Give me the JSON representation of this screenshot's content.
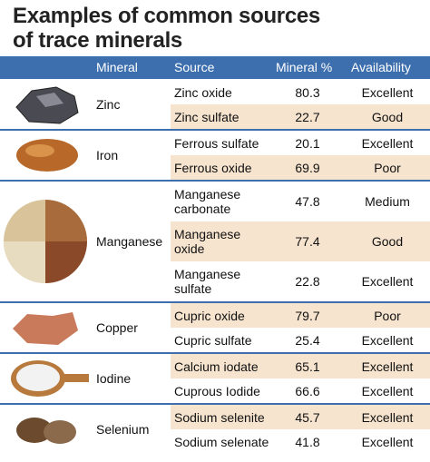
{
  "title_lines": [
    "Examples of common sources",
    "of trace minerals"
  ],
  "table": {
    "header": [
      "Mineral",
      "Source",
      "Mineral %",
      "Availability"
    ],
    "groups": [
      {
        "mineral": "Zinc",
        "rows": [
          {
            "source": "Zinc oxide",
            "percent": 80.3,
            "availability": "Excellent"
          },
          {
            "source": "Zinc sulfate",
            "percent": 22.7,
            "availability": "Good"
          }
        ]
      },
      {
        "mineral": "Iron",
        "rows": [
          {
            "source": "Ferrous sulfate",
            "percent": 20.1,
            "availability": "Excellent"
          },
          {
            "source": "Ferrous oxide",
            "percent": 69.9,
            "availability": "Poor"
          }
        ]
      },
      {
        "mineral": "Manganese",
        "rows": [
          {
            "source": "Manganese carbonate",
            "percent": 47.8,
            "availability": "Medium"
          },
          {
            "source": "Manganese oxide",
            "percent": 77.4,
            "availability": "Good"
          },
          {
            "source": "Manganese sulfate",
            "percent": 22.8,
            "availability": "Excellent"
          }
        ]
      },
      {
        "mineral": "Copper",
        "rows": [
          {
            "source": "Cupric oxide",
            "percent": 79.7,
            "availability": "Poor"
          },
          {
            "source": "Cupric sulfate",
            "percent": 25.4,
            "availability": "Excellent"
          }
        ]
      },
      {
        "mineral": "Iodine",
        "rows": [
          {
            "source": "Calcium iodate",
            "percent": 65.1,
            "availability": "Excellent"
          },
          {
            "source": "Cuprous Iodide",
            "percent": 66.6,
            "availability": "Excellent"
          }
        ]
      },
      {
        "mineral": "Selenium",
        "rows": [
          {
            "source": "Sodium selenite",
            "percent": 45.7,
            "availability": "Excellent"
          },
          {
            "source": "Sodium selenate",
            "percent": 41.8,
            "availability": "Excellent"
          }
        ]
      }
    ]
  }
}
